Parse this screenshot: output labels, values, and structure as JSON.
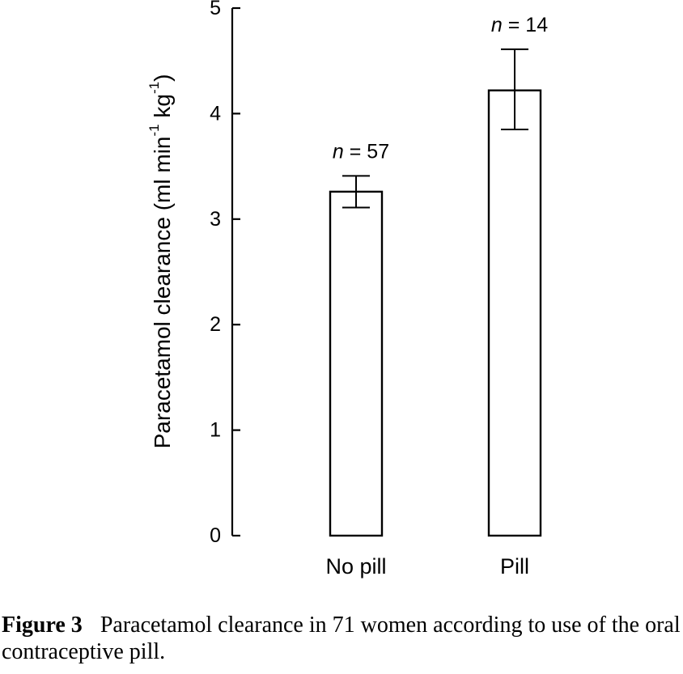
{
  "chart_data": {
    "type": "bar",
    "categories": [
      "No pill",
      "Pill"
    ],
    "values": [
      3.26,
      4.22
    ],
    "error_low": [
      3.11,
      3.85
    ],
    "error_high": [
      3.41,
      4.61
    ],
    "annotations": [
      "n = 57",
      "n = 14"
    ],
    "ylabel_main": "Paracetamol clearance (ml min",
    "ylabel_sup1": "-1",
    "ylabel_mid": " kg",
    "ylabel_sup2": "-1",
    "ylabel_end": ")",
    "ylim": [
      0,
      5
    ],
    "yticks": [
      0,
      1,
      2,
      3,
      4,
      5
    ],
    "grid": false,
    "legend": "none",
    "colors": {
      "bar_fill": "#ffffff",
      "bar_stroke": "#000000"
    }
  },
  "caption": {
    "figure_number": "Figure 3",
    "text": "Paracetamol clearance in 71 women according to use of the oral contraceptive pill."
  }
}
